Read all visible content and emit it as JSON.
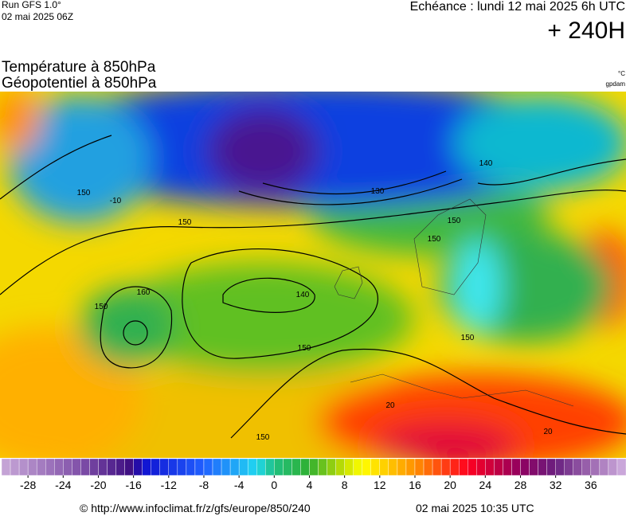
{
  "header": {
    "run": "Run GFS 1.0°",
    "run_date": "02 mai 2025 06Z",
    "echeance": "Echéance : lundi 12 mai 2025 6h UTC",
    "lead": "+ 240H",
    "title_1": "Température à 850hPa",
    "title_2": "Géopotentiel à 850hPa",
    "unit_1": "°C",
    "unit_2": "gpdam"
  },
  "colorbar": {
    "range": [
      -31,
      40
    ],
    "ticks": [
      -28,
      -24,
      -20,
      -16,
      -12,
      -8,
      -4,
      0,
      4,
      8,
      12,
      16,
      20,
      24,
      28,
      32,
      36
    ]
  },
  "contour_labels": [
    150,
    150,
    150,
    140,
    130,
    150,
    140,
    160,
    150,
    150,
    150,
    150,
    -10,
    20,
    20
  ],
  "footer": {
    "url": "© http://www.infoclimat.fr/z/gfs/europe/850/240",
    "timestamp": "02 mai 2025 10:35 UTC"
  }
}
